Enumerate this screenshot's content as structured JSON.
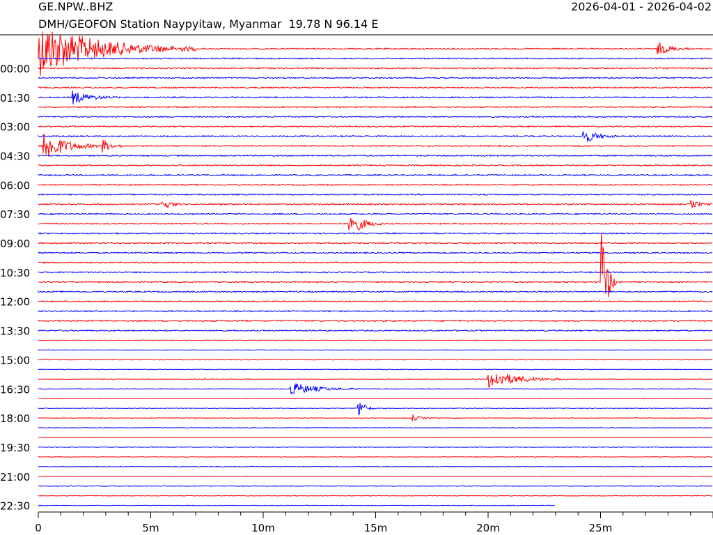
{
  "header": {
    "station_code": "GE.NPW..BHZ",
    "station_name": "DMH/GEOFON Station Naypyitaw, Myanmar  19.78 N 96.14 E",
    "date_range": "2026-04-01 - 2026-04-02"
  },
  "chart_data": {
    "type": "line",
    "title": "GE.NPW..BHZ",
    "xlabel": "",
    "ylabel": "",
    "x_ticks": [
      "0",
      "5m",
      "10m",
      "15m",
      "20m",
      "25m"
    ],
    "x_tick_values_min": [
      0,
      5,
      10,
      15,
      20,
      25
    ],
    "xlim_min": [
      0,
      30
    ],
    "row_minutes": 30,
    "row_count": 48,
    "time_labels": [
      "00:00",
      "01:30",
      "03:00",
      "04:30",
      "06:00",
      "07:30",
      "09:00",
      "10:30",
      "12:00",
      "13:30",
      "15:00",
      "16:30",
      "18:00",
      "19:30",
      "21:00",
      "22:30"
    ],
    "series_colors": [
      "#ff0000",
      "#0000ff"
    ],
    "last_trace_end_min": 23,
    "events": [
      {
        "row": 0,
        "start_min": 0.0,
        "duration_min": 7.0,
        "amplitude": 1.0,
        "label": "large event, long coda"
      },
      {
        "row": 0,
        "start_min": 27.5,
        "duration_min": 1.5,
        "amplitude": 0.25
      },
      {
        "row": 5,
        "start_min": 1.5,
        "duration_min": 2.0,
        "amplitude": 0.25
      },
      {
        "row": 9,
        "start_min": 24.2,
        "duration_min": 1.5,
        "amplitude": 0.3
      },
      {
        "row": 10,
        "start_min": 0.2,
        "duration_min": 2.5,
        "amplitude": 0.6
      },
      {
        "row": 10,
        "start_min": 2.8,
        "duration_min": 1.0,
        "amplitude": 0.3
      },
      {
        "row": 16,
        "start_min": 5.5,
        "duration_min": 1.0,
        "amplitude": 0.2
      },
      {
        "row": 16,
        "start_min": 29.0,
        "duration_min": 1.0,
        "amplitude": 0.15
      },
      {
        "row": 18,
        "start_min": 13.8,
        "duration_min": 1.5,
        "amplitude": 0.5
      },
      {
        "row": 24,
        "start_min": 25.0,
        "duration_min": 0.7,
        "amplitude": 2.5
      },
      {
        "row": 34,
        "start_min": 20.0,
        "duration_min": 3.5,
        "amplitude": 0.35
      },
      {
        "row": 35,
        "start_min": 11.2,
        "duration_min": 3.0,
        "amplitude": 0.25
      },
      {
        "row": 37,
        "start_min": 14.2,
        "duration_min": 0.8,
        "amplitude": 0.4
      },
      {
        "row": 38,
        "start_min": 16.6,
        "duration_min": 1.0,
        "amplitude": 0.12
      }
    ]
  }
}
